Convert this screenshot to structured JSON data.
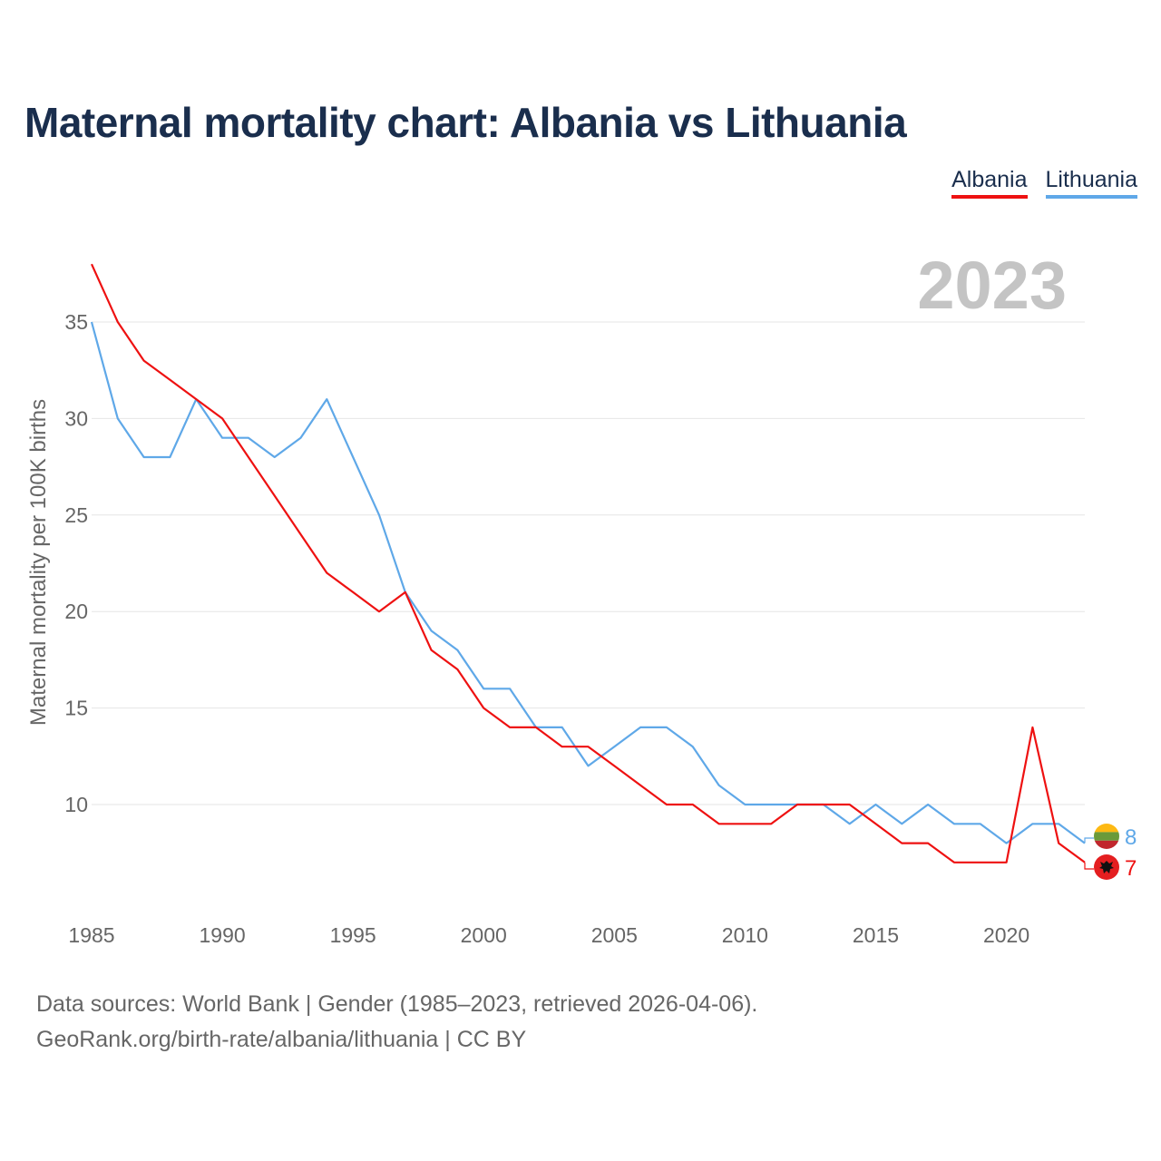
{
  "title": "Maternal mortality chart: Albania vs Lithuania",
  "legend": [
    {
      "label": "Albania",
      "color": "#ee1111"
    },
    {
      "label": "Lithuania",
      "color": "#5fa8e8"
    }
  ],
  "footer": {
    "line1": "Data sources: World Bank | Gender (1985–2023, retrieved 2026-04-06).",
    "line2": "GeoRank.org/birth-rate/albania/lithuania | CC BY"
  },
  "chart_data": {
    "type": "line",
    "title": "Maternal mortality chart: Albania vs Lithuania",
    "ylabel": "Maternal mortality per 100K births",
    "xlabel": "",
    "year_label": "2023",
    "xlim": [
      1985,
      2023
    ],
    "ylim": [
      5,
      38
    ],
    "xticks": [
      1985,
      1990,
      1995,
      2000,
      2005,
      2010,
      2015,
      2020
    ],
    "yticks": [
      10,
      15,
      20,
      25,
      30,
      35
    ],
    "grid": true,
    "legend_position": "top-right",
    "x": [
      1985,
      1986,
      1987,
      1988,
      1989,
      1990,
      1991,
      1992,
      1993,
      1994,
      1995,
      1996,
      1997,
      1998,
      1999,
      2000,
      2001,
      2002,
      2003,
      2004,
      2005,
      2006,
      2007,
      2008,
      2009,
      2010,
      2011,
      2012,
      2013,
      2014,
      2015,
      2016,
      2017,
      2018,
      2019,
      2020,
      2021,
      2022,
      2023
    ],
    "series": [
      {
        "name": "Albania",
        "color": "#ee1111",
        "end_label": "7",
        "values": [
          38,
          35,
          33,
          32,
          31,
          30,
          28,
          26,
          24,
          22,
          21,
          20,
          21,
          18,
          17,
          15,
          14,
          14,
          13,
          13,
          12,
          11,
          10,
          10,
          9,
          9,
          9,
          10,
          10,
          10,
          9,
          8,
          8,
          7,
          7,
          7,
          14,
          8,
          7
        ]
      },
      {
        "name": "Lithuania",
        "color": "#5fa8e8",
        "end_label": "8",
        "values": [
          35,
          30,
          28,
          28,
          31,
          29,
          29,
          28,
          29,
          31,
          28,
          25,
          21,
          19,
          18,
          16,
          16,
          14,
          14,
          12,
          13,
          14,
          14,
          13,
          11,
          10,
          10,
          10,
          10,
          9,
          10,
          9,
          10,
          9,
          9,
          8,
          9,
          9,
          8
        ]
      }
    ]
  }
}
